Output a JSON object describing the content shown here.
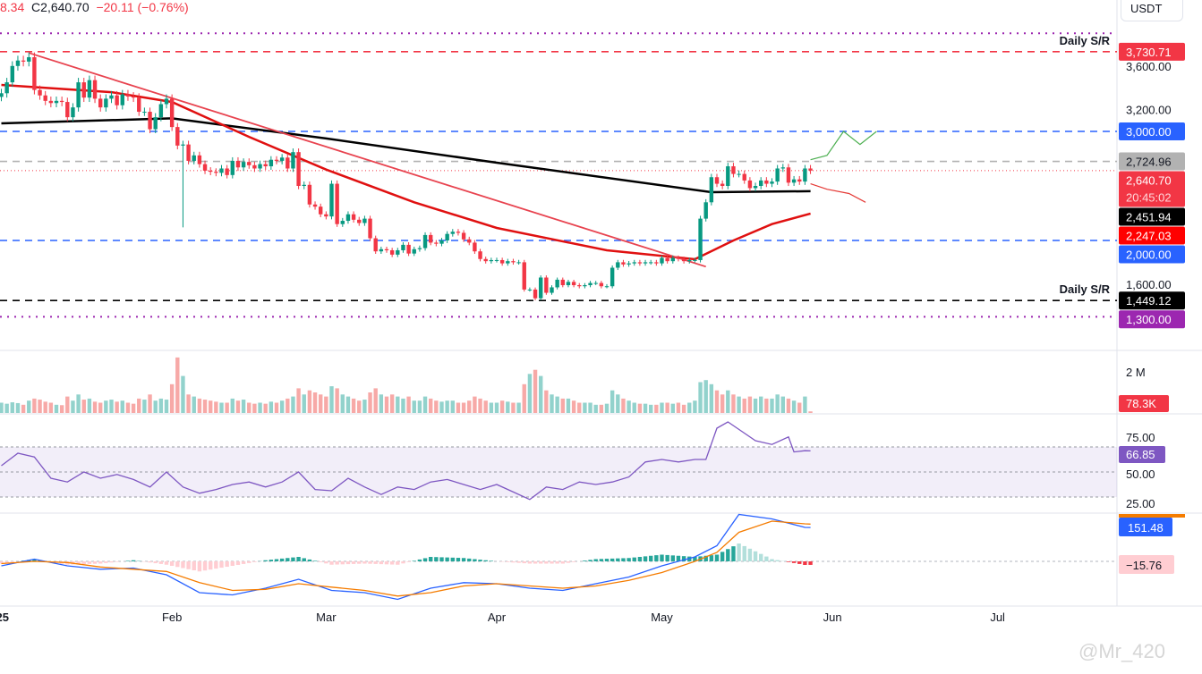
{
  "header": {
    "open_fragment": "8.34",
    "close_label": "C",
    "close": "2,640.70",
    "change": "−20.11 (−0.76%)",
    "currency": "USDT"
  },
  "watermark": "@Mr_420",
  "colors": {
    "up": "#089981",
    "down": "#f23645",
    "ema": "#e01010",
    "sma": "#000000",
    "trend": "#e8434f",
    "rsi": "#7e57c2",
    "macd": "#2962ff",
    "signal": "#f57c00"
  },
  "chart_data": {
    "type": "candlestick",
    "start_date": "2025-01-01",
    "x_ticks": [
      "25",
      "Feb",
      "Mar",
      "Apr",
      "May",
      "Jun",
      "Jul"
    ],
    "price_ticks": [
      "3,600.00",
      "3,200.00",
      "1,600.00"
    ],
    "ylim": [
      1200,
      3950
    ],
    "closes": [
      3350,
      3450,
      3600,
      3650,
      3640,
      3680,
      3380,
      3330,
      3280,
      3260,
      3280,
      3270,
      3130,
      3220,
      3450,
      3310,
      3470,
      3300,
      3220,
      3300,
      3330,
      3240,
      3340,
      3320,
      3310,
      3180,
      3180,
      3020,
      3130,
      3250,
      3300,
      3040,
      2870,
      2880,
      2730,
      2780,
      2700,
      2640,
      2630,
      2620,
      2660,
      2600,
      2730,
      2670,
      2720,
      2690,
      2660,
      2700,
      2680,
      2740,
      2730,
      2760,
      2660,
      2810,
      2500,
      2510,
      2330,
      2310,
      2240,
      2220,
      2520,
      2150,
      2180,
      2240,
      2190,
      2160,
      2200,
      2020,
      1900,
      1920,
      1910,
      1870,
      1910,
      1960,
      1880,
      1920,
      1930,
      2050,
      1980,
      1970,
      2000,
      2060,
      2080,
      2070,
      2010,
      1980,
      1900,
      1830,
      1810,
      1820,
      1820,
      1790,
      1810,
      1800,
      1800,
      1550,
      1550,
      1470,
      1660,
      1520,
      1570,
      1640,
      1590,
      1620,
      1590,
      1580,
      1590,
      1610,
      1610,
      1580,
      1580,
      1750,
      1800,
      1780,
      1790,
      1800,
      1790,
      1800,
      1800,
      1790,
      1840,
      1810,
      1840,
      1830,
      1810,
      1820,
      1820,
      2200,
      2350,
      2580,
      2520,
      2500,
      2680,
      2610,
      2610,
      2550,
      2480,
      2500,
      2550,
      2520,
      2540,
      2660,
      2670,
      2530,
      2560,
      2540,
      2660,
      2640.7
    ],
    "volumes_k": [
      500,
      450,
      520,
      480,
      400,
      600,
      700,
      650,
      550,
      500,
      400,
      380,
      800,
      600,
      900,
      650,
      700,
      550,
      500,
      600,
      650,
      550,
      600,
      500,
      450,
      700,
      650,
      900,
      600,
      700,
      650,
      1400,
      2700,
      1800,
      900,
      800,
      700,
      650,
      600,
      550,
      500,
      500,
      700,
      600,
      650,
      500,
      450,
      500,
      450,
      550,
      500,
      600,
      700,
      800,
      1200,
      900,
      1100,
      1000,
      900,
      800,
      1300,
      1200,
      900,
      800,
      700,
      600,
      650,
      1000,
      1200,
      900,
      800,
      900,
      800,
      700,
      800,
      600,
      600,
      800,
      700,
      600,
      550,
      600,
      600,
      500,
      500,
      600,
      800,
      700,
      600,
      500,
      500,
      600,
      550,
      500,
      500,
      1400,
      1900,
      2100,
      1800,
      1100,
      900,
      800,
      700,
      700,
      600,
      500,
      500,
      500,
      400,
      400,
      450,
      1100,
      900,
      700,
      600,
      500,
      450,
      450,
      400,
      400,
      500,
      500,
      450,
      500,
      400,
      500,
      600,
      1500,
      1600,
      1400,
      1100,
      900,
      1100,
      900,
      800,
      700,
      800,
      700,
      800,
      700,
      700,
      900,
      800,
      700,
      600,
      500,
      800,
      78.3
    ],
    "volume_tick": "2 M",
    "volume_last": "78.3K",
    "sma200": [
      [
        0,
        3074
      ],
      [
        31,
        3120
      ],
      [
        59,
        2935
      ],
      [
        90,
        2713
      ],
      [
        129,
        2443
      ],
      [
        147,
        2451.94
      ]
    ],
    "ema50": [
      [
        0,
        3426
      ],
      [
        20,
        3360
      ],
      [
        31,
        3270
      ],
      [
        45,
        2950
      ],
      [
        59,
        2650
      ],
      [
        75,
        2350
      ],
      [
        90,
        2115
      ],
      [
        110,
        1910
      ],
      [
        126,
        1828
      ],
      [
        133,
        2000
      ],
      [
        140,
        2150
      ],
      [
        147,
        2247.03
      ]
    ],
    "trendline": [
      [
        5,
        3720
      ],
      [
        128,
        1760
      ]
    ],
    "levels": [
      {
        "price": 3900,
        "label": "",
        "color": "#9c27b0",
        "style": "dotted",
        "text": ""
      },
      {
        "price": 3730.71,
        "label": "3,730.71",
        "color": "#f23645",
        "style": "dashed",
        "text": "Daily S/R"
      },
      {
        "price": 3000,
        "label": "3,000.00",
        "color": "#2962ff",
        "style": "dashed",
        "text": ""
      },
      {
        "price": 2724.96,
        "label": "2,724.96",
        "color": "#b2b2b2",
        "style": "dashed",
        "text": ""
      },
      {
        "price": 2000,
        "label": "2,000.00",
        "color": "#2962ff",
        "style": "dashed",
        "text": ""
      },
      {
        "price": 1449.12,
        "label": "1,449.12",
        "color": "#000000",
        "style": "dashed",
        "text": "Daily S/R"
      },
      {
        "price": 1300,
        "label": "1,300.00",
        "color": "#9c27b0",
        "style": "dotted",
        "text": ""
      }
    ],
    "price_labels": [
      {
        "price": 2640.7,
        "label": "2,640.70",
        "sub": "20:45:02",
        "color": "#f23645"
      },
      {
        "price": 2451.94,
        "label": "2,451.94",
        "color": "#000000"
      },
      {
        "price": 2247.03,
        "label": "2,247.03",
        "color": "#ff0000"
      }
    ],
    "projection_up": [
      [
        147,
        2740
      ],
      [
        150,
        2780
      ],
      [
        153,
        3000
      ],
      [
        156,
        2880
      ],
      [
        159,
        3000
      ]
    ],
    "projection_down": [
      [
        147,
        2520
      ],
      [
        150,
        2470
      ],
      [
        154,
        2430
      ],
      [
        157,
        2350
      ]
    ],
    "rsi": {
      "ticks": [
        "75.00",
        "50.00",
        "25.00"
      ],
      "last": "66.85",
      "band": [
        30,
        70
      ],
      "points": [
        [
          0,
          55
        ],
        [
          3,
          65
        ],
        [
          6,
          62
        ],
        [
          9,
          45
        ],
        [
          12,
          42
        ],
        [
          15,
          50
        ],
        [
          18,
          45
        ],
        [
          21,
          48
        ],
        [
          24,
          44
        ],
        [
          27,
          38
        ],
        [
          30,
          50
        ],
        [
          33,
          38
        ],
        [
          36,
          33
        ],
        [
          39,
          36
        ],
        [
          42,
          40
        ],
        [
          45,
          42
        ],
        [
          48,
          38
        ],
        [
          51,
          42
        ],
        [
          54,
          50
        ],
        [
          57,
          36
        ],
        [
          60,
          35
        ],
        [
          63,
          45
        ],
        [
          66,
          38
        ],
        [
          69,
          32
        ],
        [
          72,
          38
        ],
        [
          75,
          36
        ],
        [
          78,
          42
        ],
        [
          81,
          44
        ],
        [
          84,
          40
        ],
        [
          87,
          36
        ],
        [
          90,
          40
        ],
        [
          93,
          34
        ],
        [
          96,
          28
        ],
        [
          99,
          38
        ],
        [
          102,
          36
        ],
        [
          105,
          42
        ],
        [
          108,
          40
        ],
        [
          111,
          42
        ],
        [
          114,
          46
        ],
        [
          117,
          58
        ],
        [
          120,
          60
        ],
        [
          123,
          58
        ],
        [
          126,
          60
        ],
        [
          128,
          60
        ],
        [
          130,
          85
        ],
        [
          132,
          90
        ],
        [
          134,
          84
        ],
        [
          137,
          75
        ],
        [
          140,
          72
        ],
        [
          143,
          78
        ],
        [
          144,
          66
        ],
        [
          146,
          67
        ],
        [
          147,
          66.85
        ]
      ]
    },
    "macd": {
      "last_macd": "151.48",
      "last_hist": "−15.76",
      "macd_line": [
        [
          0,
          -20
        ],
        [
          6,
          10
        ],
        [
          12,
          -20
        ],
        [
          18,
          -35
        ],
        [
          24,
          -30
        ],
        [
          30,
          -60
        ],
        [
          36,
          -140
        ],
        [
          42,
          -150
        ],
        [
          48,
          -120
        ],
        [
          54,
          -80
        ],
        [
          60,
          -130
        ],
        [
          66,
          -140
        ],
        [
          72,
          -170
        ],
        [
          78,
          -120
        ],
        [
          84,
          -95
        ],
        [
          90,
          -100
        ],
        [
          96,
          -120
        ],
        [
          102,
          -130
        ],
        [
          108,
          -100
        ],
        [
          114,
          -70
        ],
        [
          120,
          -20
        ],
        [
          126,
          20
        ],
        [
          130,
          70
        ],
        [
          134,
          210
        ],
        [
          140,
          190
        ],
        [
          146,
          152
        ],
        [
          147,
          151.48
        ]
      ],
      "signal_line": [
        [
          0,
          -10
        ],
        [
          6,
          0
        ],
        [
          12,
          -5
        ],
        [
          18,
          -25
        ],
        [
          24,
          -35
        ],
        [
          30,
          -45
        ],
        [
          36,
          -95
        ],
        [
          42,
          -130
        ],
        [
          48,
          -125
        ],
        [
          54,
          -100
        ],
        [
          60,
          -115
        ],
        [
          66,
          -130
        ],
        [
          72,
          -155
        ],
        [
          78,
          -140
        ],
        [
          84,
          -110
        ],
        [
          90,
          -100
        ],
        [
          96,
          -110
        ],
        [
          102,
          -120
        ],
        [
          108,
          -110
        ],
        [
          114,
          -85
        ],
        [
          120,
          -50
        ],
        [
          126,
          0
        ],
        [
          130,
          40
        ],
        [
          134,
          130
        ],
        [
          140,
          180
        ],
        [
          146,
          168
        ],
        [
          147,
          167
        ]
      ],
      "hist": [
        [
          0,
          -10
        ],
        [
          6,
          10
        ],
        [
          12,
          -15
        ],
        [
          18,
          -10
        ],
        [
          24,
          5
        ],
        [
          30,
          -15
        ],
        [
          36,
          -45
        ],
        [
          42,
          -20
        ],
        [
          48,
          5
        ],
        [
          54,
          20
        ],
        [
          60,
          -15
        ],
        [
          66,
          -10
        ],
        [
          72,
          -15
        ],
        [
          78,
          20
        ],
        [
          84,
          15
        ],
        [
          90,
          0
        ],
        [
          96,
          -10
        ],
        [
          102,
          -10
        ],
        [
          108,
          10
        ],
        [
          114,
          15
        ],
        [
          120,
          30
        ],
        [
          126,
          20
        ],
        [
          130,
          30
        ],
        [
          134,
          80
        ],
        [
          140,
          10
        ],
        [
          146,
          -16
        ],
        [
          147,
          -15.76
        ]
      ]
    }
  }
}
